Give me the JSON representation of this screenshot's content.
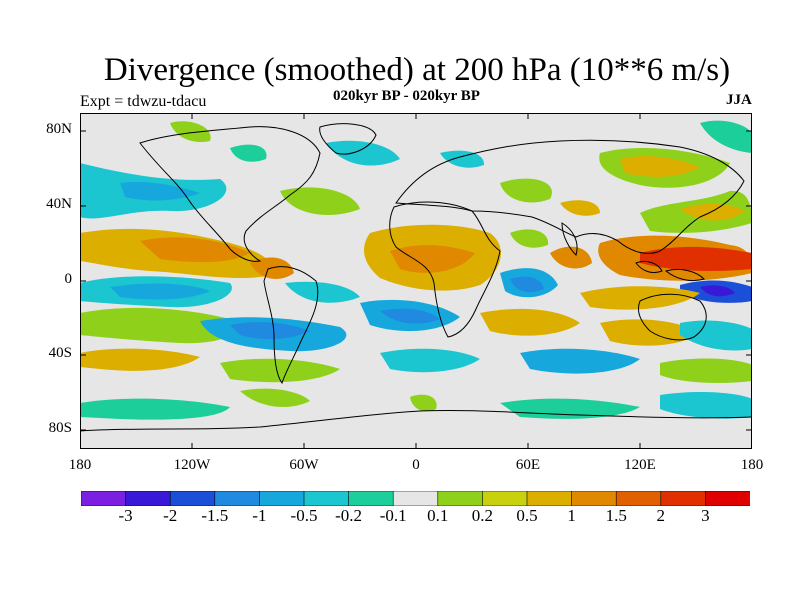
{
  "title": "Divergence (smoothed) at 200 hPa (10**6 m/s)",
  "experiment": "Expt = tdwzu-tdacu",
  "subtitle": "020kyr BP - 020kyr BP",
  "season": "JJA",
  "lat_labels": [
    "80N",
    "40N",
    "0",
    "40S",
    "80S"
  ],
  "lon_labels": [
    "180",
    "120W",
    "60W",
    "0",
    "60E",
    "120E",
    "180"
  ],
  "colorbar": {
    "colors": [
      "#7b1fe0",
      "#3a18d8",
      "#1c4fd8",
      "#1f8ae0",
      "#16a8dc",
      "#1cc6d0",
      "#1ccf9a",
      "#e6e6e6",
      "#8fd11a",
      "#c9d00e",
      "#dcae00",
      "#e08800",
      "#e06000",
      "#e03000",
      "#e00000"
    ],
    "labels": [
      "-3",
      "-2",
      "-1.5",
      "-1",
      "-0.5",
      "-0.2",
      "-0.1",
      "0.1",
      "0.2",
      "0.5",
      "1",
      "1.5",
      "2",
      "3"
    ]
  },
  "colors": {
    "background": "#e6e6e6",
    "coast": "#000000"
  }
}
